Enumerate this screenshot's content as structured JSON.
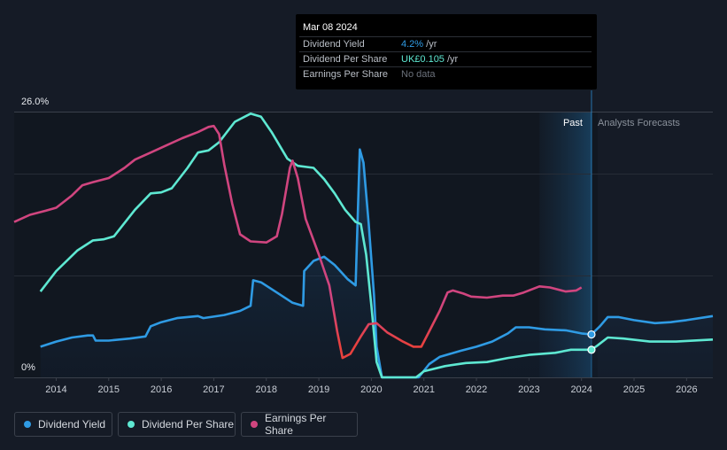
{
  "tooltip": {
    "date": "Mar 08 2024",
    "rows": [
      {
        "label": "Dividend Yield",
        "value": "4.2%",
        "unit": " /yr",
        "color": "#2f9be4"
      },
      {
        "label": "Dividend Per Share",
        "value": "UK£0.105",
        "unit": " /yr",
        "color": "#5ee8d2"
      },
      {
        "label": "Earnings Per Share",
        "value": "No data",
        "unit": "",
        "color": "#6b717b"
      }
    ]
  },
  "legend": [
    {
      "label": "Dividend Yield",
      "color": "#2f9be4"
    },
    {
      "label": "Dividend Per Share",
      "color": "#5ee8d2"
    },
    {
      "label": "Earnings Per Share",
      "color": "#d0457f"
    }
  ],
  "chart_data": {
    "type": "line",
    "title": "",
    "ylabel_top": "26.0%",
    "ylabel_bottom": "0%",
    "ylim": [
      0,
      26
    ],
    "xlim": [
      2013.2,
      2026.5
    ],
    "past_label": "Past",
    "forecast_label": "Analysts Forecasts",
    "forecast_start": 2024.19,
    "past_shade_start": 2023.2,
    "x_ticks": [
      "2014",
      "2015",
      "2016",
      "2017",
      "2018",
      "2019",
      "2020",
      "2021",
      "2022",
      "2023",
      "2024",
      "2025",
      "2026"
    ],
    "series": [
      {
        "name": "Dividend Yield",
        "color": "#2f9be4",
        "filled": true,
        "points": [
          [
            2013.7,
            3.0
          ],
          [
            2014.0,
            3.5
          ],
          [
            2014.3,
            3.9
          ],
          [
            2014.6,
            4.1
          ],
          [
            2014.7,
            4.1
          ],
          [
            2014.75,
            3.6
          ],
          [
            2015.0,
            3.6
          ],
          [
            2015.4,
            3.8
          ],
          [
            2015.7,
            4.0
          ],
          [
            2015.8,
            5.0
          ],
          [
            2016.0,
            5.4
          ],
          [
            2016.3,
            5.8
          ],
          [
            2016.7,
            6.0
          ],
          [
            2016.8,
            5.8
          ],
          [
            2017.2,
            6.1
          ],
          [
            2017.5,
            6.5
          ],
          [
            2017.7,
            7.0
          ],
          [
            2017.75,
            9.5
          ],
          [
            2017.9,
            9.3
          ],
          [
            2018.2,
            8.3
          ],
          [
            2018.5,
            7.3
          ],
          [
            2018.7,
            7.0
          ],
          [
            2018.72,
            10.4
          ],
          [
            2018.9,
            11.4
          ],
          [
            2019.1,
            11.8
          ],
          [
            2019.3,
            11.0
          ],
          [
            2019.55,
            9.6
          ],
          [
            2019.7,
            9.0
          ],
          [
            2019.78,
            22.3
          ],
          [
            2019.85,
            21.0
          ],
          [
            2019.95,
            15.0
          ],
          [
            2020.05,
            8.0
          ],
          [
            2020.1,
            3.0
          ],
          [
            2020.2,
            0
          ],
          [
            2020.9,
            0
          ],
          [
            2021.1,
            1.3
          ],
          [
            2021.3,
            2.0
          ],
          [
            2021.7,
            2.6
          ],
          [
            2022.0,
            3.0
          ],
          [
            2022.3,
            3.5
          ],
          [
            2022.6,
            4.3
          ],
          [
            2022.75,
            4.9
          ],
          [
            2023.0,
            4.9
          ],
          [
            2023.3,
            4.7
          ],
          [
            2023.7,
            4.6
          ],
          [
            2024.0,
            4.3
          ],
          [
            2024.19,
            4.2
          ],
          [
            2024.35,
            5.0
          ],
          [
            2024.5,
            5.9
          ],
          [
            2024.7,
            5.9
          ],
          [
            2025.0,
            5.6
          ],
          [
            2025.4,
            5.3
          ],
          [
            2025.7,
            5.4
          ],
          [
            2026.0,
            5.6
          ],
          [
            2026.5,
            6.0
          ]
        ]
      },
      {
        "name": "Dividend Per Share",
        "color": "#5ee8d2",
        "filled": false,
        "points": [
          [
            2013.7,
            8.4
          ],
          [
            2014.0,
            10.4
          ],
          [
            2014.4,
            12.4
          ],
          [
            2014.7,
            13.4
          ],
          [
            2014.9,
            13.5
          ],
          [
            2015.1,
            13.8
          ],
          [
            2015.5,
            16.4
          ],
          [
            2015.8,
            18.0
          ],
          [
            2016.0,
            18.1
          ],
          [
            2016.2,
            18.5
          ],
          [
            2016.5,
            20.5
          ],
          [
            2016.7,
            22.0
          ],
          [
            2016.9,
            22.2
          ],
          [
            2017.1,
            23.0
          ],
          [
            2017.4,
            25.0
          ],
          [
            2017.7,
            25.8
          ],
          [
            2017.9,
            25.5
          ],
          [
            2018.1,
            24.0
          ],
          [
            2018.4,
            21.4
          ],
          [
            2018.6,
            20.7
          ],
          [
            2018.9,
            20.5
          ],
          [
            2019.1,
            19.4
          ],
          [
            2019.3,
            18.0
          ],
          [
            2019.5,
            16.4
          ],
          [
            2019.7,
            15.2
          ],
          [
            2019.8,
            15.0
          ],
          [
            2019.9,
            12.0
          ],
          [
            2020.0,
            7.0
          ],
          [
            2020.1,
            1.5
          ],
          [
            2020.2,
            0
          ],
          [
            2020.85,
            0
          ],
          [
            2021.0,
            0.6
          ],
          [
            2021.4,
            1.1
          ],
          [
            2021.8,
            1.4
          ],
          [
            2022.2,
            1.5
          ],
          [
            2022.6,
            1.9
          ],
          [
            2023.0,
            2.2
          ],
          [
            2023.5,
            2.4
          ],
          [
            2023.8,
            2.7
          ],
          [
            2024.19,
            2.7
          ],
          [
            2024.3,
            3.1
          ],
          [
            2024.5,
            3.9
          ],
          [
            2024.8,
            3.8
          ],
          [
            2025.3,
            3.5
          ],
          [
            2025.8,
            3.5
          ],
          [
            2026.5,
            3.7
          ]
        ]
      },
      {
        "name": "Earnings Per Share",
        "color": "#d0457f",
        "filled": false,
        "points": [
          [
            2013.2,
            15.2
          ],
          [
            2013.5,
            15.9
          ],
          [
            2013.8,
            16.3
          ],
          [
            2014.0,
            16.6
          ],
          [
            2014.3,
            17.8
          ],
          [
            2014.5,
            18.8
          ],
          [
            2014.7,
            19.1
          ],
          [
            2015.0,
            19.5
          ],
          [
            2015.3,
            20.5
          ],
          [
            2015.5,
            21.3
          ],
          [
            2015.8,
            22.0
          ],
          [
            2016.1,
            22.7
          ],
          [
            2016.4,
            23.4
          ],
          [
            2016.7,
            24.0
          ],
          [
            2016.9,
            24.5
          ],
          [
            2017.0,
            24.6
          ],
          [
            2017.1,
            23.8
          ],
          [
            2017.2,
            20.8
          ],
          [
            2017.35,
            17.0
          ],
          [
            2017.5,
            14.0
          ],
          [
            2017.7,
            13.3
          ],
          [
            2018.0,
            13.2
          ],
          [
            2018.2,
            13.8
          ],
          [
            2018.3,
            16.0
          ],
          [
            2018.45,
            20.5
          ],
          [
            2018.5,
            21.2
          ],
          [
            2018.6,
            19.5
          ],
          [
            2018.75,
            15.5
          ],
          [
            2019.0,
            12.0
          ],
          [
            2019.2,
            9.0
          ],
          [
            2019.35,
            4.5
          ],
          [
            2019.45,
            1.9
          ],
          [
            2019.6,
            2.3
          ],
          [
            2019.8,
            4.0
          ],
          [
            2019.95,
            5.2
          ],
          [
            2020.1,
            5.3
          ],
          [
            2020.3,
            4.4
          ],
          [
            2020.6,
            3.5
          ],
          [
            2020.8,
            3.0
          ],
          [
            2020.95,
            3.0
          ],
          [
            2021.1,
            4.5
          ],
          [
            2021.3,
            6.5
          ],
          [
            2021.45,
            8.3
          ],
          [
            2021.55,
            8.5
          ],
          [
            2021.75,
            8.2
          ],
          [
            2021.9,
            7.9
          ],
          [
            2022.2,
            7.8
          ],
          [
            2022.5,
            8.0
          ],
          [
            2022.7,
            8.0
          ],
          [
            2022.9,
            8.3
          ],
          [
            2023.2,
            8.9
          ],
          [
            2023.4,
            8.8
          ],
          [
            2023.7,
            8.4
          ],
          [
            2023.9,
            8.5
          ],
          [
            2024.0,
            8.8
          ]
        ]
      }
    ],
    "markers": [
      {
        "series": "Dividend Yield",
        "x": 2024.19,
        "y": 4.2
      },
      {
        "series": "Dividend Per Share",
        "x": 2024.19,
        "y": 2.7
      }
    ]
  }
}
